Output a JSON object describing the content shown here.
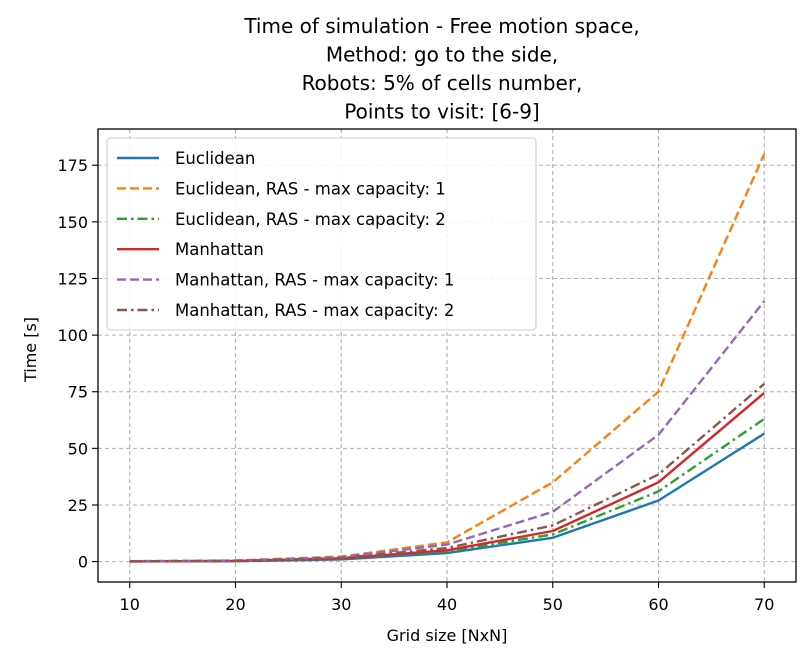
{
  "chart_data": {
    "type": "line",
    "title": "Time of simulation - Free motion space,\nMethod: go to the side,\nRobots: 5% of cells number,\nPoints to visit: [6-9]",
    "xlabel": "Grid size [NxN]",
    "ylabel": "Time [s]",
    "x": [
      10,
      20,
      30,
      40,
      50,
      60,
      70
    ],
    "xlim": [
      7,
      73
    ],
    "ylim": [
      -9,
      191
    ],
    "xticks": [
      10,
      20,
      30,
      40,
      50,
      60,
      70
    ],
    "yticks": [
      0,
      25,
      50,
      75,
      100,
      125,
      150,
      175
    ],
    "grid": true,
    "legend_position": "upper-left",
    "series": [
      {
        "name": "Euclidean",
        "color": "#1f77b4",
        "style": "solid",
        "values": [
          0.1,
          0.2,
          1.0,
          3.8,
          10.5,
          27.0,
          56.5
        ]
      },
      {
        "name": "Euclidean, RAS - max capacity: 1",
        "color": "#ff7f0e",
        "style": "dashed",
        "values": [
          0.2,
          0.5,
          2.2,
          8.5,
          35.0,
          75.0,
          180.0
        ]
      },
      {
        "name": "Euclidean, RAS - max capacity: 2",
        "color": "#2ca02c",
        "style": "dashdot",
        "values": [
          0.1,
          0.3,
          1.3,
          4.5,
          12.0,
          31.0,
          63.0
        ]
      },
      {
        "name": "Manhattan",
        "color": "#d62728",
        "style": "solid",
        "values": [
          0.1,
          0.3,
          1.4,
          5.0,
          13.5,
          35.0,
          74.5
        ]
      },
      {
        "name": "Manhattan, RAS - max capacity: 1",
        "color": "#9467bd",
        "style": "dashed",
        "values": [
          0.2,
          0.4,
          2.0,
          7.5,
          22.0,
          56.0,
          115.0
        ]
      },
      {
        "name": "Manhattan, RAS - max capacity: 2",
        "color": "#8c564b",
        "style": "dashdot",
        "values": [
          0.1,
          0.3,
          1.6,
          6.0,
          16.0,
          38.5,
          78.5
        ]
      }
    ]
  }
}
